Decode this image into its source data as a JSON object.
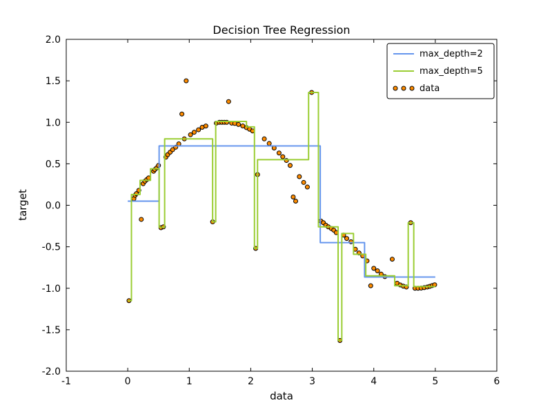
{
  "chart_data": {
    "type": "line",
    "title": "Decision Tree Regression",
    "xlabel": "data",
    "ylabel": "target",
    "xlim": [
      -1,
      6
    ],
    "ylim": [
      -2,
      2
    ],
    "xticks": [
      -1,
      0,
      1,
      2,
      3,
      4,
      5,
      6
    ],
    "xtick_labels": [
      "-1",
      "0",
      "1",
      "2",
      "3",
      "4",
      "5",
      "6"
    ],
    "yticks": [
      -2,
      -1.5,
      -1,
      -0.5,
      0,
      0.5,
      1,
      1.5,
      2
    ],
    "ytick_labels": [
      "-2.0",
      "-1.5",
      "-1.0",
      "-0.5",
      "0.0",
      "0.5",
      "1.0",
      "1.5",
      "2.0"
    ],
    "grid": false,
    "background": "#ffffff",
    "frame_color": "#000000",
    "legend": {
      "position": "upper right",
      "entries": [
        "max_depth=2",
        "max_depth=5",
        "data"
      ]
    },
    "series": [
      {
        "name": "max_depth=2",
        "kind": "step",
        "color": "#6495ED",
        "linewidth": 2,
        "segments": [
          [
            0.0,
            0.51,
            0.05
          ],
          [
            0.51,
            3.13,
            0.715
          ],
          [
            3.13,
            3.85,
            -0.45
          ],
          [
            3.85,
            5.0,
            -0.865
          ]
        ]
      },
      {
        "name": "max_depth=5",
        "kind": "step",
        "color": "#9ACD32",
        "linewidth": 2,
        "segments": [
          [
            0.0,
            0.06,
            -1.15
          ],
          [
            0.06,
            0.2,
            0.13
          ],
          [
            0.2,
            0.37,
            0.3
          ],
          [
            0.37,
            0.51,
            0.44
          ],
          [
            0.51,
            0.6,
            -0.265
          ],
          [
            0.6,
            1.38,
            0.8
          ],
          [
            1.38,
            1.43,
            -0.2
          ],
          [
            1.43,
            1.93,
            1.01
          ],
          [
            1.93,
            2.06,
            0.945
          ],
          [
            2.06,
            2.11,
            -0.52
          ],
          [
            2.11,
            2.94,
            0.55
          ],
          [
            2.94,
            3.1,
            1.36
          ],
          [
            3.1,
            3.42,
            -0.26
          ],
          [
            3.42,
            3.48,
            -1.63
          ],
          [
            3.48,
            3.67,
            -0.34
          ],
          [
            3.67,
            3.87,
            -0.59
          ],
          [
            3.87,
            4.34,
            -0.85
          ],
          [
            4.34,
            4.56,
            -0.97
          ],
          [
            4.56,
            4.65,
            -0.21
          ],
          [
            4.65,
            5.0,
            -0.98
          ]
        ]
      },
      {
        "name": "data",
        "kind": "scatter",
        "color": "#FF8C00",
        "edgecolor": "#000000",
        "points": [
          [
            0.02,
            -1.15
          ],
          [
            0.1,
            0.08
          ],
          [
            0.12,
            0.12
          ],
          [
            0.14,
            0.14
          ],
          [
            0.18,
            0.18
          ],
          [
            0.22,
            -0.17
          ],
          [
            0.25,
            0.26
          ],
          [
            0.28,
            0.29
          ],
          [
            0.31,
            0.31
          ],
          [
            0.34,
            0.33
          ],
          [
            0.42,
            0.41
          ],
          [
            0.44,
            0.43
          ],
          [
            0.47,
            0.45
          ],
          [
            0.5,
            0.48
          ],
          [
            0.54,
            -0.27
          ],
          [
            0.58,
            -0.26
          ],
          [
            0.62,
            0.58
          ],
          [
            0.65,
            0.61
          ],
          [
            0.69,
            0.64
          ],
          [
            0.73,
            0.67
          ],
          [
            0.78,
            0.7
          ],
          [
            0.83,
            0.74
          ],
          [
            0.88,
            1.1
          ],
          [
            0.92,
            0.8
          ],
          [
            0.95,
            1.5
          ],
          [
            1.02,
            0.85
          ],
          [
            1.08,
            0.88
          ],
          [
            1.15,
            0.91
          ],
          [
            1.21,
            0.94
          ],
          [
            1.27,
            0.955
          ],
          [
            1.38,
            -0.2
          ],
          [
            1.44,
            0.99
          ],
          [
            1.49,
            1.0
          ],
          [
            1.53,
            1.0
          ],
          [
            1.57,
            1.0
          ],
          [
            1.61,
            1.0
          ],
          [
            1.64,
            1.25
          ],
          [
            1.69,
            0.99
          ],
          [
            1.74,
            0.986
          ],
          [
            1.8,
            0.974
          ],
          [
            1.87,
            0.956
          ],
          [
            1.93,
            0.936
          ],
          [
            1.98,
            0.917
          ],
          [
            2.03,
            0.896
          ],
          [
            2.08,
            -0.52
          ],
          [
            2.11,
            0.37
          ],
          [
            2.22,
            0.8
          ],
          [
            2.3,
            0.745
          ],
          [
            2.38,
            0.69
          ],
          [
            2.46,
            0.63
          ],
          [
            2.52,
            0.585
          ],
          [
            2.58,
            0.54
          ],
          [
            2.64,
            0.48
          ],
          [
            2.69,
            0.1
          ],
          [
            2.73,
            0.05
          ],
          [
            2.79,
            0.345
          ],
          [
            2.86,
            0.275
          ],
          [
            2.92,
            0.22
          ],
          [
            2.99,
            1.36
          ],
          [
            3.14,
            -0.19
          ],
          [
            3.18,
            -0.21
          ],
          [
            3.22,
            -0.24
          ],
          [
            3.26,
            -0.26
          ],
          [
            3.31,
            -0.28
          ],
          [
            3.35,
            -0.3
          ],
          [
            3.39,
            -0.33
          ],
          [
            3.45,
            -1.63
          ],
          [
            3.51,
            -0.36
          ],
          [
            3.56,
            -0.4
          ],
          [
            3.63,
            -0.44
          ],
          [
            3.7,
            -0.53
          ],
          [
            3.76,
            -0.575
          ],
          [
            3.82,
            -0.61
          ],
          [
            3.89,
            -0.67
          ],
          [
            3.95,
            -0.97
          ],
          [
            4.0,
            -0.76
          ],
          [
            4.06,
            -0.79
          ],
          [
            4.12,
            -0.83
          ],
          [
            4.18,
            -0.86
          ],
          [
            4.3,
            -0.65
          ],
          [
            4.38,
            -0.94
          ],
          [
            4.43,
            -0.96
          ],
          [
            4.48,
            -0.975
          ],
          [
            4.53,
            -0.985
          ],
          [
            4.6,
            -0.21
          ],
          [
            4.67,
            -1.0
          ],
          [
            4.72,
            -1.0
          ],
          [
            4.77,
            -0.998
          ],
          [
            4.82,
            -0.993
          ],
          [
            4.87,
            -0.985
          ],
          [
            4.91,
            -0.977
          ],
          [
            4.95,
            -0.968
          ],
          [
            4.99,
            -0.958
          ]
        ]
      }
    ]
  }
}
